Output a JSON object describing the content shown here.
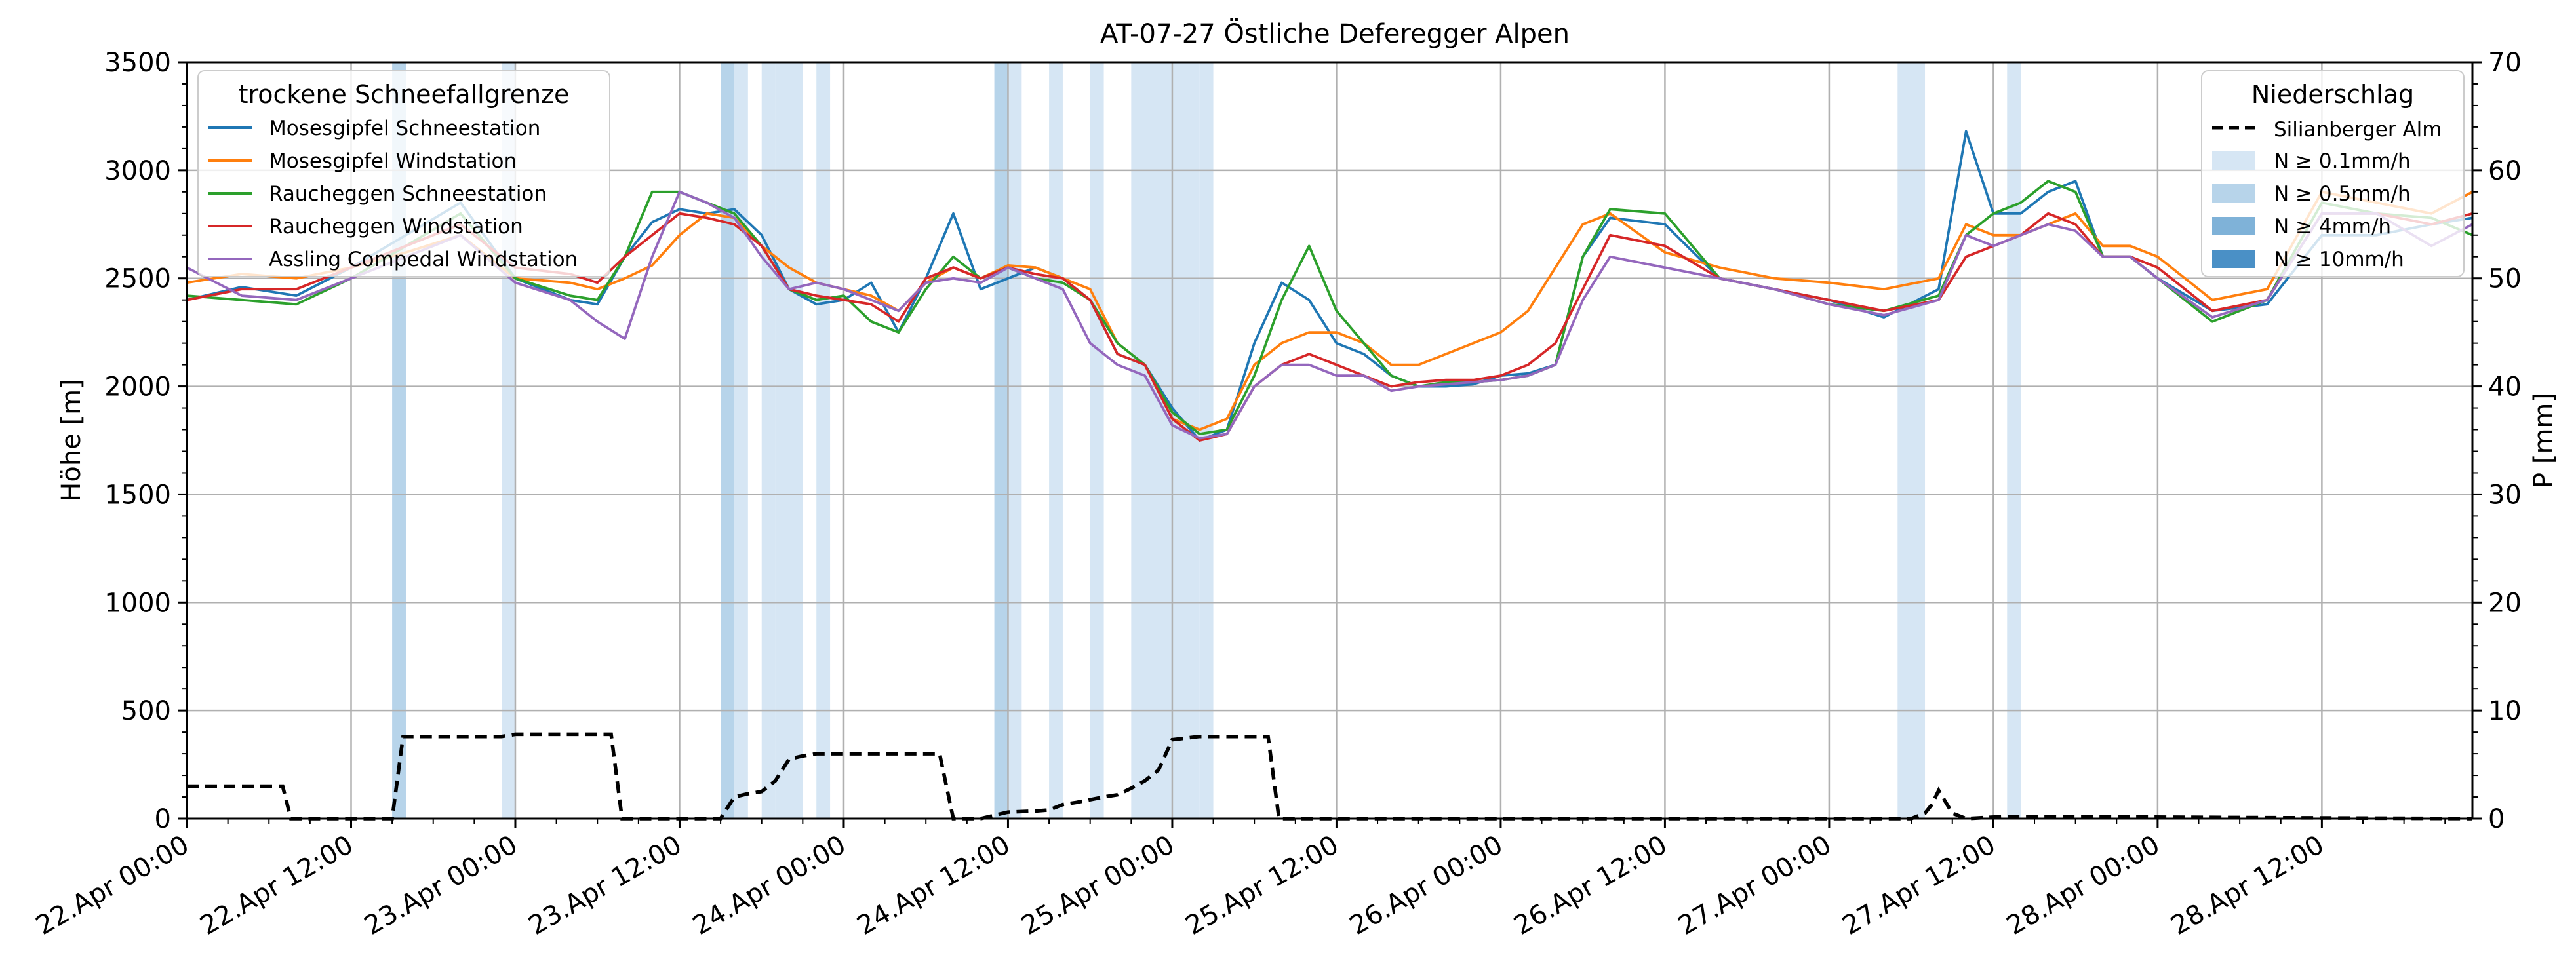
{
  "chart_data": {
    "type": "line",
    "title": "AT-07-27 Östliche Deferegger Alpen",
    "ylabel": "Höhe [m]",
    "y2label": "P [mm]",
    "ylim": [
      0,
      3500
    ],
    "y2lim": [
      0,
      70
    ],
    "yticks": [
      0,
      500,
      1000,
      1500,
      2000,
      2500,
      3000,
      3500
    ],
    "y2ticks": [
      0,
      10,
      20,
      30,
      40,
      50,
      60,
      70
    ],
    "xlim_hours": [
      0,
      167
    ],
    "x_tick_labels": [
      "22.Apr 00:00",
      "22.Apr 12:00",
      "23.Apr 00:00",
      "23.Apr 12:00",
      "24.Apr 00:00",
      "24.Apr 12:00",
      "25.Apr 00:00",
      "25.Apr 12:00",
      "26.Apr 00:00",
      "26.Apr 12:00",
      "27.Apr 00:00",
      "27.Apr 12:00",
      "28.Apr 00:00",
      "28.Apr 12:00"
    ],
    "grid": true,
    "legend_left": {
      "title": "trockene Schneefallgrenze",
      "placement": "top-left"
    },
    "legend_right": {
      "title": "Niederschlag",
      "placement": "top-right",
      "line_entry": "Silianberger Alm",
      "band_entries": [
        {
          "label": "N ≥ 0.1mm/h",
          "color": "#d6e6f4"
        },
        {
          "label": "N ≥ 0.5mm/h",
          "color": "#b7d4ea"
        },
        {
          "label": "N ≥ 4mm/h",
          "color": "#7fb2d8"
        },
        {
          "label": "N ≥ 10mm/h",
          "color": "#4a90c6"
        }
      ]
    },
    "series": [
      {
        "name": "Mosesgipfel Schneestation",
        "color": "#1f77b4",
        "x": [
          0,
          4,
          8,
          12,
          16,
          20,
          24,
          28,
          30,
          32,
          34,
          36,
          38,
          40,
          42,
          44,
          46,
          48,
          50,
          52,
          54,
          56,
          58,
          60,
          62,
          64,
          66,
          68,
          70,
          72,
          74,
          76,
          78,
          80,
          82,
          84,
          86,
          88,
          90,
          92,
          94,
          96,
          98,
          100,
          102,
          104,
          108,
          112,
          116,
          120,
          124,
          128,
          130,
          132,
          134,
          136,
          138,
          140,
          142,
          144,
          148,
          152,
          156,
          160,
          164,
          167
        ],
        "values": [
          2400,
          2460,
          2420,
          2550,
          2700,
          2850,
          2500,
          2400,
          2380,
          2600,
          2760,
          2820,
          2800,
          2820,
          2700,
          2450,
          2380,
          2400,
          2480,
          2250,
          2500,
          2800,
          2450,
          2500,
          2550,
          2500,
          2400,
          2150,
          2100,
          1900,
          1750,
          1800,
          2200,
          2480,
          2400,
          2200,
          2150,
          2050,
          2000,
          2000,
          2010,
          2050,
          2060,
          2100,
          2600,
          2780,
          2750,
          2500,
          2450,
          2400,
          2320,
          2450,
          3180,
          2800,
          2800,
          2900,
          2950,
          2600,
          2600,
          2500,
          2350,
          2380,
          2700,
          2700,
          2750,
          2780
        ]
      },
      {
        "name": "Mosesgipfel Windstation",
        "color": "#ff7f0e",
        "x": [
          0,
          4,
          8,
          12,
          16,
          20,
          24,
          28,
          30,
          32,
          34,
          36,
          38,
          40,
          42,
          44,
          46,
          48,
          50,
          52,
          54,
          56,
          58,
          60,
          62,
          64,
          66,
          68,
          70,
          72,
          74,
          76,
          78,
          80,
          82,
          84,
          86,
          88,
          90,
          92,
          94,
          96,
          98,
          100,
          102,
          104,
          108,
          112,
          116,
          120,
          124,
          128,
          130,
          132,
          134,
          136,
          138,
          140,
          142,
          144,
          148,
          152,
          156,
          160,
          164,
          167
        ],
        "values": [
          2480,
          2520,
          2500,
          2550,
          2620,
          2700,
          2500,
          2480,
          2450,
          2500,
          2560,
          2700,
          2800,
          2780,
          2650,
          2550,
          2480,
          2450,
          2420,
          2350,
          2480,
          2550,
          2500,
          2560,
          2550,
          2500,
          2450,
          2200,
          2100,
          1850,
          1800,
          1850,
          2100,
          2200,
          2250,
          2250,
          2200,
          2100,
          2100,
          2150,
          2200,
          2250,
          2350,
          2550,
          2750,
          2800,
          2620,
          2550,
          2500,
          2480,
          2450,
          2500,
          2750,
          2700,
          2700,
          2750,
          2800,
          2650,
          2650,
          2600,
          2400,
          2450,
          2900,
          2850,
          2800,
          2900
        ]
      },
      {
        "name": "Raucheggen Schneestation",
        "color": "#2ca02c",
        "x": [
          0,
          4,
          8,
          12,
          16,
          20,
          24,
          28,
          30,
          32,
          34,
          36,
          38,
          40,
          42,
          44,
          46,
          48,
          50,
          52,
          54,
          56,
          58,
          60,
          62,
          64,
          66,
          68,
          70,
          72,
          74,
          76,
          78,
          80,
          82,
          84,
          86,
          88,
          90,
          92,
          94,
          96,
          98,
          100,
          102,
          104,
          108,
          112,
          116,
          120,
          124,
          128,
          130,
          132,
          134,
          136,
          138,
          140,
          142,
          144,
          148,
          152,
          156,
          160,
          164,
          167
        ],
        "values": [
          2420,
          2400,
          2380,
          2500,
          2650,
          2800,
          2500,
          2420,
          2400,
          2600,
          2900,
          2900,
          2850,
          2800,
          2650,
          2450,
          2400,
          2420,
          2300,
          2250,
          2450,
          2600,
          2500,
          2550,
          2500,
          2480,
          2400,
          2200,
          2100,
          1880,
          1780,
          1800,
          2050,
          2400,
          2650,
          2350,
          2200,
          2050,
          2000,
          2020,
          2020,
          2030,
          2050,
          2100,
          2600,
          2820,
          2800,
          2500,
          2450,
          2380,
          2350,
          2420,
          2700,
          2800,
          2850,
          2950,
          2900,
          2600,
          2600,
          2500,
          2300,
          2400,
          2850,
          2800,
          2780,
          2700
        ]
      },
      {
        "name": "Raucheggen Windstation",
        "color": "#d62728",
        "x": [
          0,
          4,
          8,
          12,
          16,
          20,
          24,
          28,
          30,
          32,
          34,
          36,
          38,
          40,
          42,
          44,
          46,
          48,
          50,
          52,
          54,
          56,
          58,
          60,
          62,
          64,
          66,
          68,
          70,
          72,
          74,
          76,
          78,
          80,
          82,
          84,
          86,
          88,
          90,
          92,
          94,
          96,
          98,
          100,
          102,
          104,
          108,
          112,
          116,
          120,
          124,
          128,
          130,
          132,
          134,
          136,
          138,
          140,
          142,
          144,
          148,
          152,
          156,
          160,
          164,
          167
        ],
        "values": [
          2400,
          2450,
          2450,
          2550,
          2650,
          2750,
          2550,
          2520,
          2480,
          2600,
          2700,
          2800,
          2780,
          2750,
          2650,
          2450,
          2420,
          2400,
          2380,
          2300,
          2500,
          2550,
          2500,
          2550,
          2520,
          2500,
          2400,
          2150,
          2100,
          1850,
          1750,
          1780,
          2000,
          2100,
          2150,
          2100,
          2050,
          2000,
          2020,
          2030,
          2030,
          2050,
          2100,
          2200,
          2450,
          2700,
          2650,
          2500,
          2450,
          2400,
          2350,
          2400,
          2600,
          2650,
          2700,
          2800,
          2750,
          2600,
          2600,
          2550,
          2350,
          2400,
          2800,
          2800,
          2750,
          2800
        ]
      },
      {
        "name": "Assling Compedal Windstation",
        "color": "#9467bd",
        "x": [
          0,
          4,
          8,
          12,
          16,
          20,
          24,
          28,
          30,
          32,
          34,
          36,
          38,
          40,
          42,
          44,
          46,
          48,
          50,
          52,
          54,
          56,
          58,
          60,
          62,
          64,
          66,
          68,
          70,
          72,
          74,
          76,
          78,
          80,
          82,
          84,
          86,
          88,
          90,
          92,
          94,
          96,
          98,
          100,
          102,
          104,
          108,
          112,
          116,
          120,
          124,
          128,
          130,
          132,
          134,
          136,
          138,
          140,
          142,
          144,
          148,
          152,
          156,
          160,
          164,
          167
        ],
        "values": [
          2550,
          2420,
          2400,
          2500,
          2600,
          2700,
          2480,
          2400,
          2300,
          2220,
          2600,
          2900,
          2850,
          2780,
          2600,
          2450,
          2480,
          2450,
          2400,
          2350,
          2480,
          2500,
          2480,
          2550,
          2500,
          2450,
          2200,
          2100,
          2050,
          1820,
          1760,
          1780,
          2000,
          2100,
          2100,
          2050,
          2050,
          1980,
          2000,
          2010,
          2020,
          2030,
          2050,
          2100,
          2400,
          2600,
          2550,
          2500,
          2450,
          2380,
          2330,
          2400,
          2700,
          2650,
          2700,
          2750,
          2720,
          2600,
          2600,
          2500,
          2320,
          2400,
          2800,
          2800,
          2650,
          2750
        ]
      }
    ],
    "precip_series": {
      "name": "Silianberger Alm",
      "x": [
        0,
        7,
        7.6,
        15,
        15.8,
        23,
        24,
        31,
        31.8,
        39,
        40,
        41,
        42,
        43,
        44,
        45,
        46,
        47,
        48,
        50,
        52,
        55,
        56,
        58,
        60,
        62,
        63,
        64,
        65,
        67,
        68,
        69,
        70,
        71,
        72,
        74,
        75,
        76,
        78,
        79,
        79.8,
        126,
        127,
        127.5,
        128,
        129,
        130,
        133,
        150,
        167
      ],
      "values": [
        3,
        3,
        0,
        0,
        7.6,
        7.6,
        7.8,
        7.8,
        0,
        0,
        2,
        2.3,
        2.5,
        3.5,
        5.5,
        5.8,
        6,
        6,
        6,
        6,
        6,
        6,
        0,
        0,
        0.6,
        0.7,
        0.8,
        1.3,
        1.5,
        2,
        2.2,
        2.8,
        3.5,
        4.5,
        7.3,
        7.6,
        7.6,
        7.6,
        7.6,
        7.6,
        0,
        0,
        0.5,
        1.3,
        2.6,
        0.5,
        0,
        0.2,
        0.1,
        0
      ]
    },
    "precip_bands": [
      {
        "x0": 15,
        "x1": 16,
        "level": "N ≥ 0.5mm/h"
      },
      {
        "x0": 23,
        "x1": 24,
        "level": "N ≥ 0.1mm/h"
      },
      {
        "x0": 39,
        "x1": 40,
        "level": "N ≥ 0.5mm/h"
      },
      {
        "x0": 40,
        "x1": 41,
        "level": "N ≥ 0.1mm/h"
      },
      {
        "x0": 42,
        "x1": 43,
        "level": "N ≥ 0.1mm/h"
      },
      {
        "x0": 43,
        "x1": 45,
        "level": "N ≥ 0.1mm/h"
      },
      {
        "x0": 46,
        "x1": 47,
        "level": "N ≥ 0.1mm/h"
      },
      {
        "x0": 59,
        "x1": 60,
        "level": "N ≥ 0.5mm/h"
      },
      {
        "x0": 60,
        "x1": 61,
        "level": "N ≥ 0.1mm/h"
      },
      {
        "x0": 63,
        "x1": 64,
        "level": "N ≥ 0.1mm/h"
      },
      {
        "x0": 66,
        "x1": 67,
        "level": "N ≥ 0.1mm/h"
      },
      {
        "x0": 69,
        "x1": 70,
        "level": "N ≥ 0.1mm/h"
      },
      {
        "x0": 70,
        "x1": 74,
        "level": "N ≥ 0.1mm/h"
      },
      {
        "x0": 74,
        "x1": 75,
        "level": "N ≥ 0.1mm/h"
      },
      {
        "x0": 125,
        "x1": 127,
        "level": "N ≥ 0.1mm/h"
      },
      {
        "x0": 133,
        "x1": 134,
        "level": "N ≥ 0.1mm/h"
      }
    ]
  }
}
